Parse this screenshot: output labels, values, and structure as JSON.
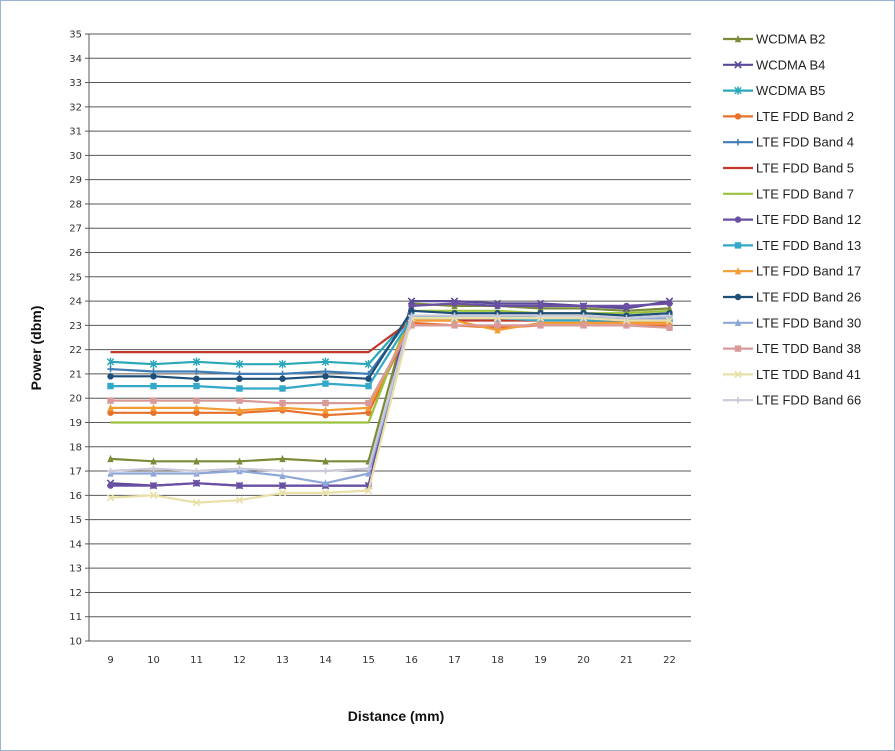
{
  "chart_data": {
    "type": "line",
    "title": "",
    "xlabel": "Distance (mm)",
    "ylabel": "Power (dbm)",
    "categories": [
      "9",
      "10",
      "11",
      "12",
      "13",
      "14",
      "15",
      "16",
      "17",
      "18",
      "19",
      "20",
      "21",
      "22"
    ],
    "ylim": [
      10,
      35
    ],
    "yticks": [
      10,
      11,
      12,
      13,
      14,
      15,
      16,
      17,
      18,
      19,
      20,
      21,
      22,
      23,
      24,
      25,
      26,
      27,
      28,
      29,
      30,
      31,
      32,
      33,
      34,
      35
    ],
    "grid": "horizontal",
    "legend_position": "right",
    "series": [
      {
        "name": "WCDMA B2",
        "color": "#7a8c3a",
        "marker": "triangle",
        "values": [
          17.5,
          17.4,
          17.4,
          17.4,
          17.5,
          17.4,
          17.4,
          23.9,
          23.8,
          23.8,
          23.7,
          23.7,
          23.6,
          23.7
        ]
      },
      {
        "name": "WCDMA B4",
        "color": "#5b4a9a",
        "marker": "x",
        "values": [
          16.5,
          16.4,
          16.5,
          16.4,
          16.4,
          16.4,
          16.4,
          24.0,
          24.0,
          23.9,
          23.9,
          23.8,
          23.7,
          24.0
        ]
      },
      {
        "name": "WCDMA B5",
        "color": "#2aa7b8",
        "marker": "star",
        "values": [
          21.5,
          21.4,
          21.5,
          21.4,
          21.4,
          21.5,
          21.4,
          23.4,
          23.3,
          23.3,
          23.3,
          23.2,
          23.2,
          23.3
        ]
      },
      {
        "name": "LTE FDD Band 2",
        "color": "#e8712a",
        "marker": "dot",
        "values": [
          19.4,
          19.4,
          19.4,
          19.4,
          19.5,
          19.3,
          19.4,
          23.1,
          23.0,
          22.9,
          23.0,
          23.0,
          23.0,
          23.0
        ]
      },
      {
        "name": "LTE FDD Band 4",
        "color": "#3e7eb4",
        "marker": "plus",
        "values": [
          21.2,
          21.1,
          21.1,
          21.0,
          21.0,
          21.1,
          21.0,
          23.4,
          23.4,
          23.4,
          23.3,
          23.3,
          23.3,
          23.4
        ]
      },
      {
        "name": "LTE FDD Band 5",
        "color": "#c0392b",
        "marker": "none",
        "values": [
          21.9,
          21.9,
          21.9,
          21.9,
          21.9,
          21.9,
          21.9,
          23.2,
          23.2,
          23.2,
          23.2,
          23.2,
          23.1,
          23.1
        ]
      },
      {
        "name": "LTE FDD Band 7",
        "color": "#9ac23c",
        "marker": "none",
        "values": [
          19.0,
          19.0,
          19.0,
          19.0,
          19.0,
          19.0,
          19.0,
          23.6,
          23.6,
          23.6,
          23.5,
          23.5,
          23.5,
          23.6
        ]
      },
      {
        "name": "LTE FDD Band 12",
        "color": "#6a4fa3",
        "marker": "dot",
        "values": [
          16.4,
          16.4,
          16.5,
          16.4,
          16.4,
          16.4,
          16.4,
          23.8,
          23.9,
          23.8,
          23.8,
          23.8,
          23.8,
          23.9
        ]
      },
      {
        "name": "LTE FDD Band 13",
        "color": "#32a9c9",
        "marker": "square",
        "values": [
          20.5,
          20.5,
          20.5,
          20.4,
          20.4,
          20.6,
          20.5,
          23.3,
          23.3,
          23.3,
          23.2,
          23.2,
          23.2,
          23.2
        ]
      },
      {
        "name": "LTE FDD Band 17",
        "color": "#f39c33",
        "marker": "triangle",
        "values": [
          19.6,
          19.6,
          19.6,
          19.5,
          19.6,
          19.5,
          19.6,
          23.2,
          23.2,
          22.8,
          23.1,
          23.1,
          23.1,
          23.1
        ]
      },
      {
        "name": "LTE FDD Band 26",
        "color": "#1f4e79",
        "marker": "dot",
        "values": [
          20.9,
          20.9,
          20.8,
          20.8,
          20.8,
          20.9,
          20.8,
          23.6,
          23.5,
          23.5,
          23.5,
          23.5,
          23.4,
          23.5
        ]
      },
      {
        "name": "LTE FDD Band 30",
        "color": "#8fa8d8",
        "marker": "triangle",
        "values": [
          16.9,
          16.9,
          16.9,
          17.0,
          16.8,
          16.5,
          16.9,
          23.3,
          23.3,
          23.3,
          23.3,
          23.3,
          23.2,
          23.3
        ]
      },
      {
        "name": "LTE TDD Band 38",
        "color": "#d99a9a",
        "marker": "square",
        "values": [
          19.9,
          19.9,
          19.9,
          19.9,
          19.8,
          19.8,
          19.8,
          23.0,
          23.0,
          23.0,
          23.0,
          23.0,
          23.0,
          22.9
        ]
      },
      {
        "name": "LTE TDD Band 41",
        "color": "#e9e0a8",
        "marker": "x",
        "values": [
          15.9,
          16.0,
          15.7,
          15.8,
          16.1,
          16.1,
          16.2,
          23.3,
          23.3,
          23.3,
          23.3,
          23.3,
          23.2,
          23.2
        ]
      },
      {
        "name": "LTE FDD Band 66",
        "color": "#c9c9d9",
        "marker": "plus",
        "values": [
          17.0,
          17.1,
          17.0,
          17.1,
          17.0,
          17.0,
          17.1,
          23.4,
          23.4,
          23.4,
          23.4,
          23.4,
          23.3,
          23.4
        ]
      }
    ]
  }
}
